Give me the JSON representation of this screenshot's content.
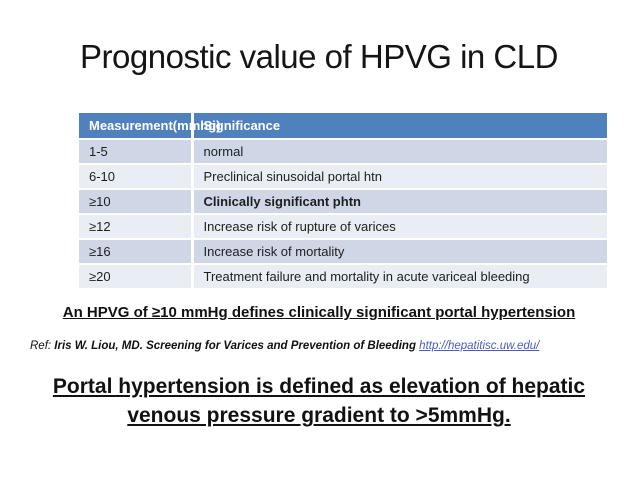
{
  "slide": {
    "title": "Prognostic value of HPVG in CLD",
    "table": {
      "headers": [
        "Measurement(mmhg)",
        "Significance"
      ],
      "rows": [
        {
          "measurement": "1-5",
          "significance": "normal"
        },
        {
          "measurement": "6-10",
          "significance": "Preclinical sinusoidal portal htn"
        },
        {
          "measurement": "≥10",
          "significance": "Clinically significant phtn"
        },
        {
          "measurement": "≥12",
          "significance": "Increase risk of rupture of varices"
        },
        {
          "measurement": "≥16",
          "significance": "Increase risk of mortality"
        },
        {
          "measurement": "≥20",
          "significance": "Treatment failure and mortality in acute variceal bleeding"
        }
      ]
    },
    "callout": "An HPVG of ≥10 mmHg defines clinically significant portal hypertension",
    "reference": {
      "prefix": "Ref:",
      "text": "Iris W. Liou, MD. Screening for Varices and Prevention of Bleeding",
      "link": "http://hepatitisc.uw.edu/"
    },
    "statement_line1": "Portal hypertension is defined as elevation of hepatic",
    "statement_line2": "venous pressure gradient to >5mmHg.",
    "colors": {
      "header_bg": "#4f81bd",
      "row_band_dark": "#cfd7e7",
      "row_band_light": "#e9edf4",
      "link": "#4a5bc4"
    }
  }
}
